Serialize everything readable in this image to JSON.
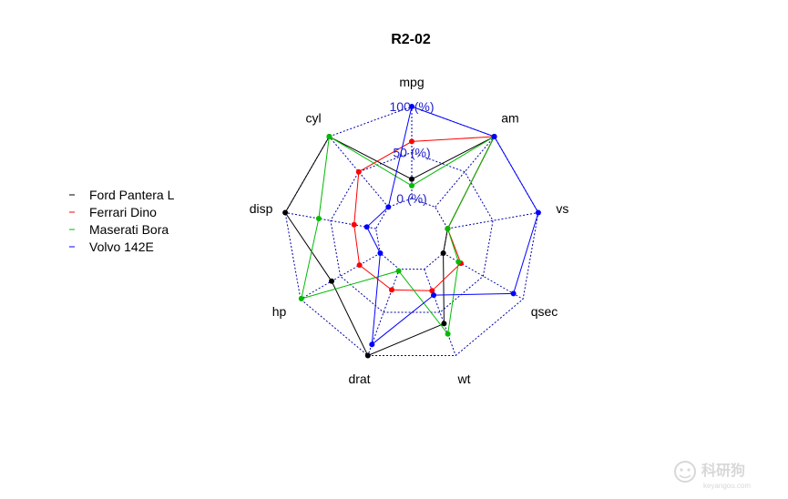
{
  "chart_data": {
    "type": "radar",
    "title": "R2-02",
    "axes": [
      "mpg",
      "am",
      "vs",
      "qsec",
      "wt",
      "drat",
      "hp",
      "disp",
      "cyl"
    ],
    "levels": [
      0,
      50,
      100
    ],
    "level_labels": [
      "0 (%)",
      "50 (%)",
      "100 (%)"
    ],
    "level_label_color": "#2222cc",
    "grid_color": "#0000aa",
    "value_range": [
      0,
      100
    ],
    "grid": true,
    "legend_position": "left",
    "series": [
      {
        "name": "Ford Pantera L",
        "color": "#000000",
        "values": [
          21,
          100,
          0,
          0,
          63,
          100,
          61,
          100,
          100
        ]
      },
      {
        "name": "Ferrari Dino",
        "color": "#ff0000",
        "values": [
          62,
          100,
          0,
          22,
          25,
          24,
          26,
          24,
          50
        ]
      },
      {
        "name": "Maserati Bora",
        "color": "#00bb00",
        "values": [
          14,
          100,
          0,
          19,
          75,
          2,
          99,
          63,
          100
        ]
      },
      {
        "name": "Volvo 142E",
        "color": "#0000ff",
        "values": [
          100,
          100,
          100,
          88,
          30,
          87,
          0,
          10,
          0
        ]
      }
    ]
  },
  "watermark": {
    "text": "科研狗",
    "sub": "keyangou.com"
  }
}
